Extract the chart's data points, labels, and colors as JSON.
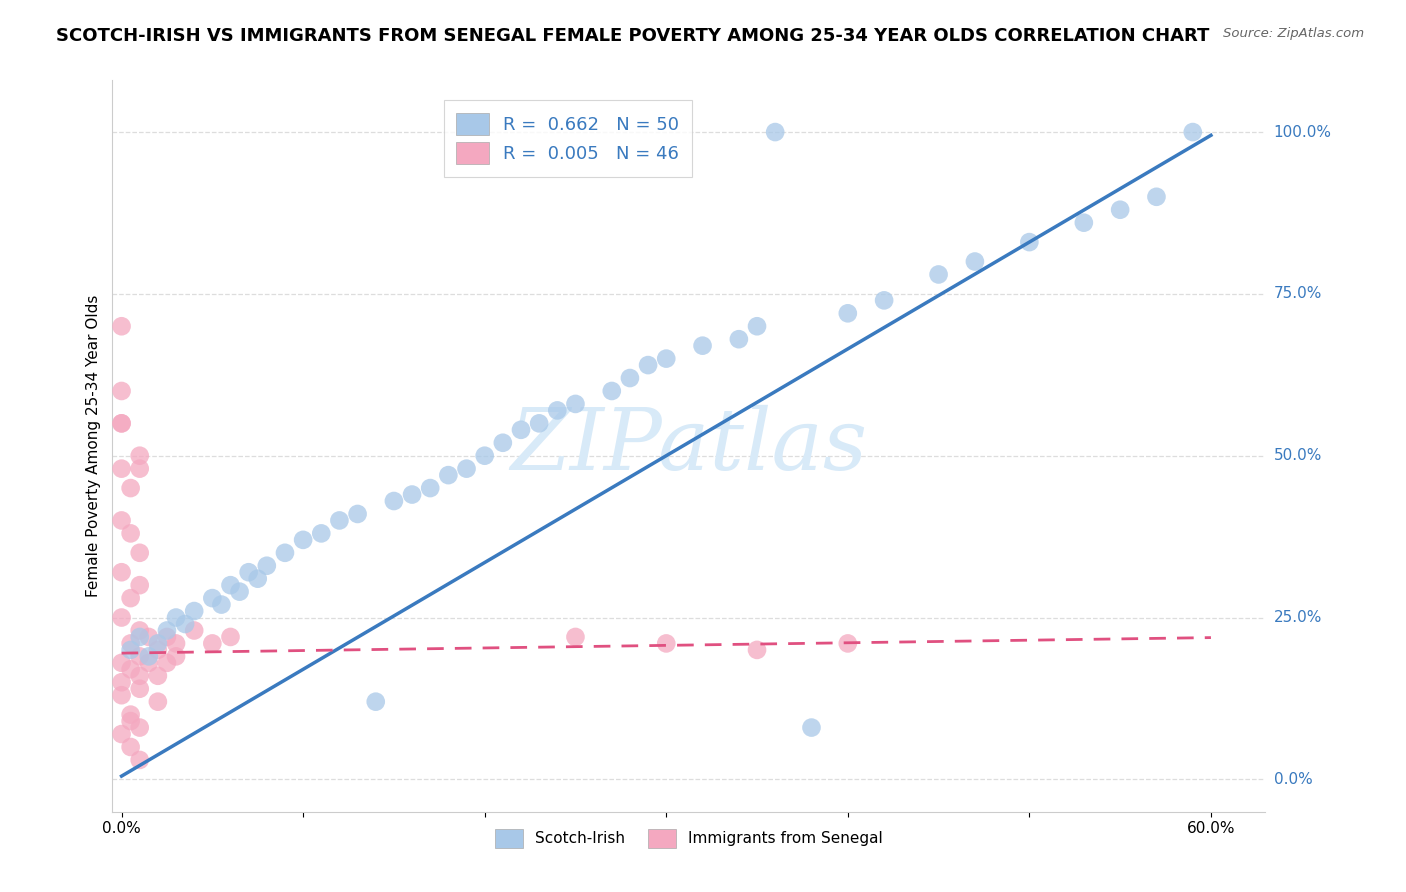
{
  "title": "SCOTCH-IRISH VS IMMIGRANTS FROM SENEGAL FEMALE POVERTY AMONG 25-34 YEAR OLDS CORRELATION CHART",
  "source": "Source: ZipAtlas.com",
  "ylabel": "Female Poverty Among 25-34 Year Olds",
  "blue_R": 0.662,
  "blue_N": 50,
  "pink_R": 0.005,
  "pink_N": 46,
  "blue_color": "#a8c8e8",
  "pink_color": "#f4a8c0",
  "blue_line_color": "#3a7abf",
  "pink_line_color": "#e05080",
  "label_color": "#3a7abf",
  "watermark": "ZIPatlas",
  "watermark_color": "#d8eaf8",
  "blue_scatter_x": [
    0.005,
    0.01,
    0.015,
    0.02,
    0.025,
    0.03,
    0.035,
    0.04,
    0.05,
    0.055,
    0.06,
    0.065,
    0.07,
    0.075,
    0.08,
    0.09,
    0.1,
    0.11,
    0.12,
    0.13,
    0.14,
    0.15,
    0.16,
    0.17,
    0.18,
    0.19,
    0.2,
    0.21,
    0.22,
    0.23,
    0.24,
    0.25,
    0.27,
    0.28,
    0.29,
    0.3,
    0.32,
    0.34,
    0.35,
    0.36,
    0.38,
    0.4,
    0.42,
    0.45,
    0.47,
    0.5,
    0.53,
    0.55,
    0.57,
    0.59
  ],
  "blue_scatter_y": [
    0.2,
    0.22,
    0.19,
    0.21,
    0.23,
    0.25,
    0.24,
    0.26,
    0.28,
    0.27,
    0.3,
    0.29,
    0.32,
    0.31,
    0.33,
    0.35,
    0.37,
    0.38,
    0.4,
    0.41,
    0.12,
    0.43,
    0.44,
    0.45,
    0.47,
    0.48,
    0.5,
    0.52,
    0.54,
    0.55,
    0.57,
    0.58,
    0.6,
    0.62,
    0.64,
    0.65,
    0.67,
    0.68,
    0.7,
    1.0,
    0.08,
    0.72,
    0.74,
    0.78,
    0.8,
    0.83,
    0.86,
    0.88,
    0.9,
    1.0
  ],
  "pink_scatter_x": [
    0.0,
    0.0,
    0.0,
    0.005,
    0.005,
    0.01,
    0.01,
    0.01,
    0.01,
    0.015,
    0.015,
    0.02,
    0.02,
    0.025,
    0.025,
    0.03,
    0.03,
    0.04,
    0.05,
    0.06,
    0.0,
    0.005,
    0.01,
    0.0,
    0.005,
    0.0,
    0.01,
    0.005,
    0.0,
    0.01,
    0.25,
    0.3,
    0.35,
    0.4,
    0.0,
    0.005,
    0.01,
    0.02,
    0.0,
    0.005,
    0.0,
    0.01,
    0.0,
    0.005,
    0.0,
    0.01
  ],
  "pink_scatter_y": [
    0.18,
    0.15,
    0.13,
    0.21,
    0.17,
    0.23,
    0.19,
    0.16,
    0.14,
    0.22,
    0.18,
    0.2,
    0.16,
    0.22,
    0.18,
    0.19,
    0.21,
    0.23,
    0.21,
    0.22,
    0.4,
    0.38,
    0.35,
    0.32,
    0.28,
    0.25,
    0.5,
    0.45,
    0.55,
    0.48,
    0.22,
    0.21,
    0.2,
    0.21,
    0.6,
    0.1,
    0.08,
    0.12,
    0.07,
    0.09,
    0.55,
    0.3,
    0.7,
    0.05,
    0.48,
    0.03
  ],
  "blue_line_slope": 1.65,
  "blue_line_intercept": 0.005,
  "pink_line_slope": 0.04,
  "pink_line_intercept": 0.195,
  "xlim_min": -0.005,
  "xlim_max": 0.63,
  "ylim_min": -0.05,
  "ylim_max": 1.08,
  "xtick_positions": [
    0.0,
    0.1,
    0.2,
    0.3,
    0.4,
    0.5,
    0.6
  ],
  "xticklabels": [
    "0.0%",
    "",
    "",
    "",
    "",
    "",
    "60.0%"
  ],
  "ytick_vals": [
    0.0,
    0.25,
    0.5,
    0.75,
    1.0
  ],
  "ytick_labels": [
    "0.0%",
    "25.0%",
    "50.0%",
    "75.0%",
    "100.0%"
  ],
  "grid_color": "#dddddd",
  "spine_color": "#cccccc",
  "title_fontsize": 13,
  "axis_label_fontsize": 11,
  "tick_fontsize": 11,
  "legend_fontsize": 13
}
